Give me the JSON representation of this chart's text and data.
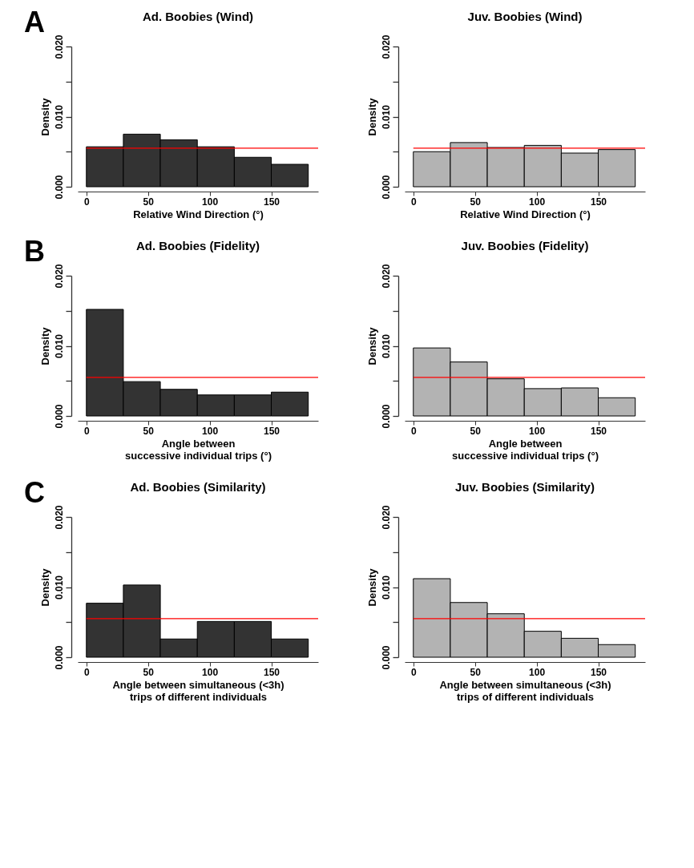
{
  "chart_data": [
    {
      "type": "histogram",
      "title": "Ad. Boobies (Wind)",
      "xlabel": "Relative Wind Direction (°)",
      "ylabel": "Density",
      "annotations": [
        "A"
      ],
      "bins": [
        0,
        30,
        60,
        90,
        120,
        150,
        180
      ],
      "values": [
        0.0057,
        0.0075,
        0.0067,
        0.0057,
        0.0042,
        0.0032
      ],
      "color": "#333333",
      "xlim": [
        -7,
        188
      ],
      "xticks": [
        0,
        50,
        100,
        150
      ],
      "ylim": [
        0,
        0.02
      ],
      "yticks": [
        {
          "value": 0,
          "label": "0.000"
        },
        {
          "value": 0.005,
          "label": null
        },
        {
          "value": 0.01,
          "label": "0.010"
        },
        {
          "value": 0.015,
          "label": null
        },
        {
          "value": 0.02,
          "label": "0.020"
        }
      ],
      "ref_lines": [
        {
          "axis": "y",
          "value": 0.0055,
          "label": null,
          "color": "#ff0000"
        }
      ],
      "grid": false
    },
    {
      "type": "histogram",
      "title": "Juv. Boobies (Wind)",
      "xlabel": "Relative Wind Direction (°)",
      "ylabel": "Density",
      "bins": [
        0,
        30,
        60,
        90,
        120,
        150,
        180
      ],
      "values": [
        0.005,
        0.0063,
        0.0056,
        0.0059,
        0.0048,
        0.0053
      ],
      "color": "#b3b3b3",
      "xlim": [
        -7,
        188
      ],
      "xticks": [
        0,
        50,
        100,
        150
      ],
      "ylim": [
        0,
        0.02
      ],
      "yticks": [
        {
          "value": 0,
          "label": "0.000"
        },
        {
          "value": 0.005,
          "label": null
        },
        {
          "value": 0.01,
          "label": "0.010"
        },
        {
          "value": 0.015,
          "label": null
        },
        {
          "value": 0.02,
          "label": "0.020"
        }
      ],
      "ref_lines": [
        {
          "axis": "y",
          "value": 0.0055,
          "label": null,
          "color": "#ff0000"
        }
      ],
      "grid": false
    },
    {
      "type": "histogram",
      "title": "Ad. Boobies (Fidelity)",
      "xlabel": "Angle between\nsuccessive individual trips (°)",
      "ylabel": "Density",
      "annotations": [
        "B"
      ],
      "bins": [
        0,
        30,
        60,
        90,
        120,
        150,
        180
      ],
      "values": [
        0.0152,
        0.0049,
        0.0038,
        0.003,
        0.003,
        0.0034
      ],
      "color": "#333333",
      "xlim": [
        -7,
        188
      ],
      "xticks": [
        0,
        50,
        100,
        150
      ],
      "ylim": [
        0,
        0.02
      ],
      "yticks": [
        {
          "value": 0,
          "label": "0.000"
        },
        {
          "value": 0.005,
          "label": null
        },
        {
          "value": 0.01,
          "label": "0.010"
        },
        {
          "value": 0.015,
          "label": null
        },
        {
          "value": 0.02,
          "label": "0.020"
        }
      ],
      "ref_lines": [
        {
          "axis": "y",
          "value": 0.0055,
          "label": null,
          "color": "#ff0000"
        }
      ],
      "grid": false
    },
    {
      "type": "histogram",
      "title": "Juv. Boobies (Fidelity)",
      "xlabel": "Angle between\nsuccessive individual trips (°)",
      "ylabel": "Density",
      "bins": [
        0,
        30,
        60,
        90,
        120,
        150,
        180
      ],
      "values": [
        0.0097,
        0.0077,
        0.0053,
        0.0039,
        0.004,
        0.0026
      ],
      "color": "#b3b3b3",
      "xlim": [
        -7,
        188
      ],
      "xticks": [
        0,
        50,
        100,
        150
      ],
      "ylim": [
        0,
        0.02
      ],
      "yticks": [
        {
          "value": 0,
          "label": "0.000"
        },
        {
          "value": 0.005,
          "label": null
        },
        {
          "value": 0.01,
          "label": "0.010"
        },
        {
          "value": 0.015,
          "label": null
        },
        {
          "value": 0.02,
          "label": "0.020"
        }
      ],
      "ref_lines": [
        {
          "axis": "y",
          "value": 0.0055,
          "label": null,
          "color": "#ff0000"
        }
      ],
      "grid": false
    },
    {
      "type": "histogram",
      "title": "Ad. Boobies (Similarity)",
      "xlabel": "Angle between simultaneous (<3h)\ntrips of different individuals",
      "ylabel": "Density",
      "annotations": [
        "C"
      ],
      "bins": [
        0,
        30,
        60,
        90,
        120,
        150,
        180
      ],
      "values": [
        0.0077,
        0.0103,
        0.0026,
        0.0051,
        0.0051,
        0.0026
      ],
      "color": "#333333",
      "xlim": [
        -7,
        188
      ],
      "xticks": [
        0,
        50,
        100,
        150
      ],
      "ylim": [
        0,
        0.02
      ],
      "yticks": [
        {
          "value": 0,
          "label": "0.000"
        },
        {
          "value": 0.005,
          "label": null
        },
        {
          "value": 0.01,
          "label": "0.010"
        },
        {
          "value": 0.015,
          "label": null
        },
        {
          "value": 0.02,
          "label": "0.020"
        }
      ],
      "ref_lines": [
        {
          "axis": "y",
          "value": 0.0055,
          "label": null,
          "color": "#ff0000"
        }
      ],
      "grid": false
    },
    {
      "type": "histogram",
      "title": "Juv. Boobies (Similarity)",
      "xlabel": "Angle between simultaneous (<3h)\ntrips of different individuals",
      "ylabel": "Density",
      "bins": [
        0,
        30,
        60,
        90,
        120,
        150,
        180
      ],
      "values": [
        0.0112,
        0.0078,
        0.0062,
        0.0037,
        0.0027,
        0.0018
      ],
      "color": "#b3b3b3",
      "xlim": [
        -7,
        188
      ],
      "xticks": [
        0,
        50,
        100,
        150
      ],
      "ylim": [
        0,
        0.02
      ],
      "yticks": [
        {
          "value": 0,
          "label": "0.000"
        },
        {
          "value": 0.005,
          "label": null
        },
        {
          "value": 0.01,
          "label": "0.010"
        },
        {
          "value": 0.015,
          "label": null
        },
        {
          "value": 0.02,
          "label": "0.020"
        }
      ],
      "ref_lines": [
        {
          "axis": "y",
          "value": 0.0055,
          "label": null,
          "color": "#ff0000"
        }
      ],
      "grid": false
    }
  ]
}
